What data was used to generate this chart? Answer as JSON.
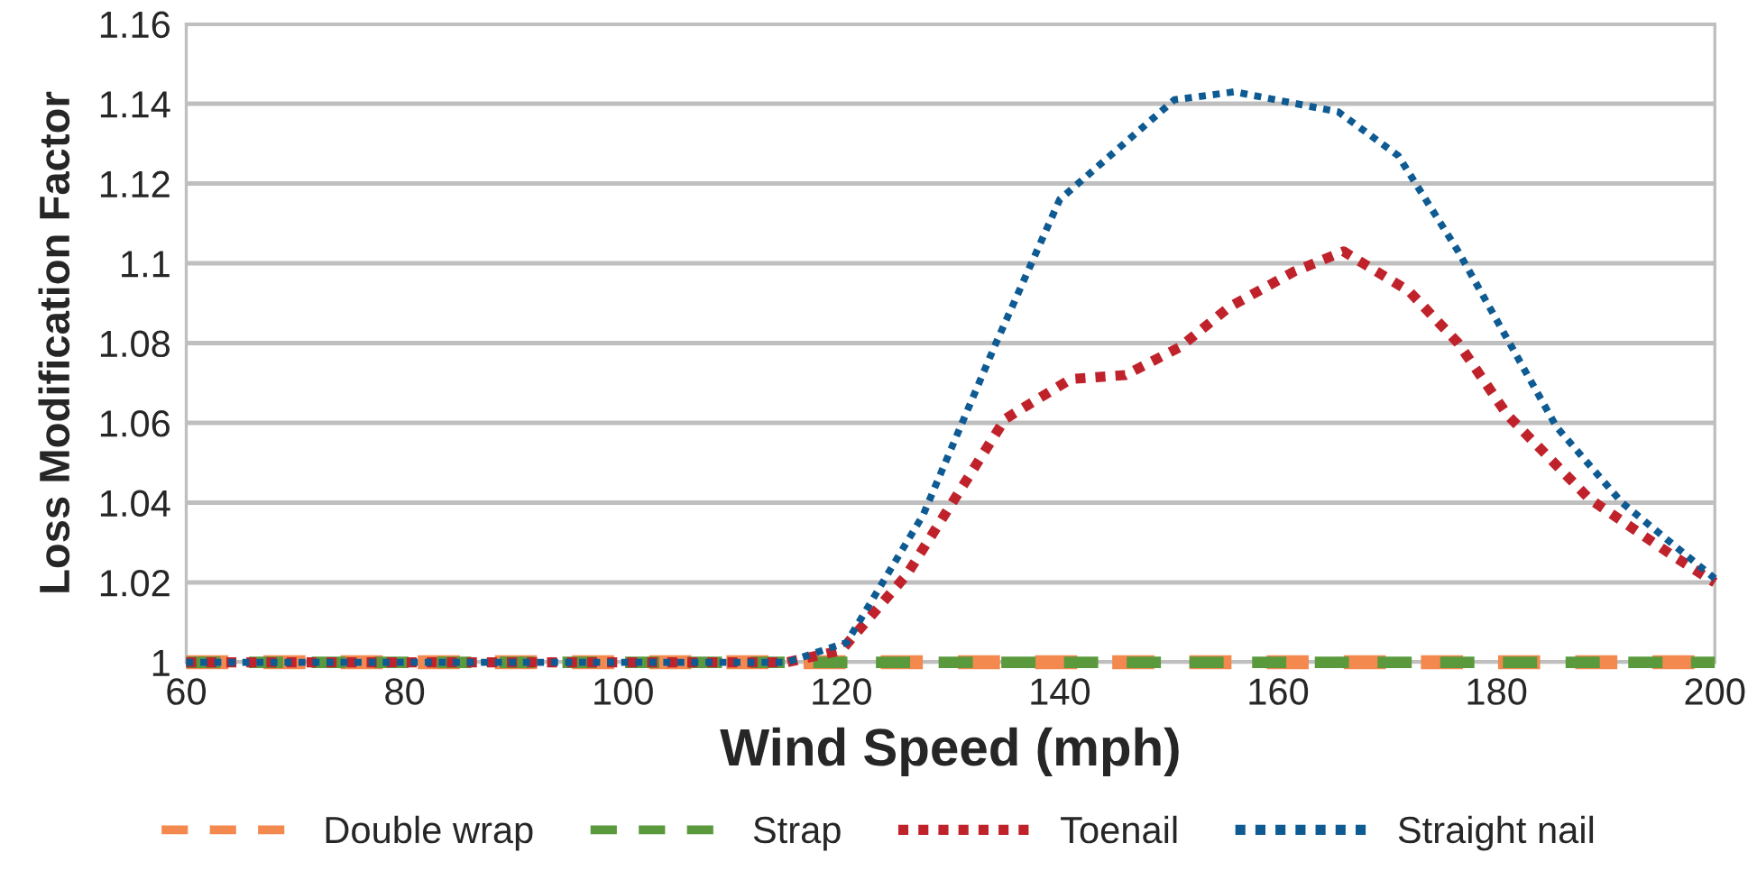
{
  "chart_data": {
    "type": "line",
    "xlabel": "Wind Speed (mph)",
    "ylabel": "Loss Modification Factor",
    "xlim": [
      60,
      200
    ],
    "xticks": [
      60,
      80,
      100,
      120,
      140,
      160,
      180,
      200
    ],
    "ylim": [
      1,
      1.16
    ],
    "yticks": [
      1,
      1.02,
      1.04,
      1.06,
      1.08,
      1.1,
      1.12,
      1.14,
      1.16
    ],
    "grid": "y",
    "legend": "bottom",
    "series": [
      {
        "name": "Double wrap",
        "color": "#f4894f",
        "line_style": "dashed",
        "x": [
          60,
          200
        ],
        "values": [
          1,
          1
        ]
      },
      {
        "name": "Strap",
        "color": "#5a9a3c",
        "line_style": "dashed",
        "x": [
          60,
          200
        ],
        "values": [
          1,
          1
        ]
      },
      {
        "name": "Toenail",
        "color": "#c0222b",
        "line_style": "dotted",
        "x": [
          60,
          115,
          120,
          126,
          135,
          141,
          146,
          151,
          155.5,
          161.5,
          166,
          172,
          176.5,
          181,
          188.5,
          196,
          200
        ],
        "values": [
          1,
          1,
          1.003,
          1.022,
          1.061,
          1.071,
          1.072,
          1.079,
          1.089,
          1.098,
          1.103,
          1.093,
          1.08,
          1.062,
          1.041,
          1.027,
          1.02
        ]
      },
      {
        "name": "Straight nail",
        "color": "#0e5a92",
        "line_style": "dotted",
        "x": [
          60,
          115,
          120.5,
          127.5,
          134,
          140,
          150.5,
          156,
          165.5,
          171,
          176.5,
          185.5,
          191.5,
          200
        ],
        "values": [
          1,
          1,
          1.005,
          1.037,
          1.079,
          1.116,
          1.141,
          1.143,
          1.138,
          1.127,
          1.103,
          1.059,
          1.04,
          1.021
        ]
      }
    ]
  }
}
